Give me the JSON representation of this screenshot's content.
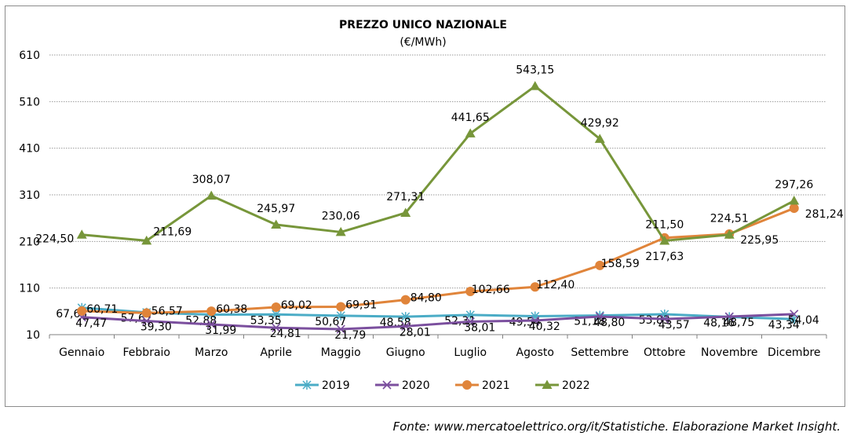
{
  "chart_data": {
    "type": "line",
    "title": "PREZZO UNICO NAZIONALE",
    "subtitle": "(€/MWh)",
    "xlabel": "",
    "ylabel": "",
    "ylim": [
      10,
      610
    ],
    "yticks": [
      10,
      110,
      210,
      310,
      410,
      510,
      610
    ],
    "grid": true,
    "legend_position": "bottom",
    "categories": [
      "Gennaio",
      "Febbraio",
      "Marzo",
      "Aprile",
      "Maggio",
      "Giugno",
      "Luglio",
      "Agosto",
      "Settembre",
      "Ottobre",
      "Novembre",
      "Dicembre"
    ],
    "series": [
      {
        "name": "2019",
        "color": "#4bacc6",
        "marker": "asterisk",
        "values": [
          67.65,
          57.67,
          52.88,
          53.35,
          50.67,
          48.58,
          52.31,
          49.54,
          51.18,
          53.83,
          48.16,
          43.34
        ],
        "labels": [
          "67,65",
          "57,67",
          "52,88",
          "53,35",
          "50,67",
          "48,58",
          "52,31",
          "49,54",
          "51,18",
          "53,83",
          "48,16",
          "43,34"
        ]
      },
      {
        "name": "2020",
        "color": "#7b4f9e",
        "marker": "x",
        "values": [
          47.47,
          39.3,
          31.99,
          24.81,
          21.79,
          28.01,
          38.01,
          40.32,
          48.8,
          43.57,
          48.75,
          54.04
        ],
        "labels": [
          "47,47",
          "39,30",
          "31,99",
          "24,81",
          "21,79",
          "28,01",
          "38,01",
          "40,32",
          "48,80",
          "43,57",
          "48,75",
          "54,04"
        ]
      },
      {
        "name": "2021",
        "color": "#e0843a",
        "marker": "circle",
        "values": [
          60.71,
          56.57,
          60.38,
          69.02,
          69.91,
          84.8,
          102.66,
          112.4,
          158.59,
          217.63,
          225.95,
          281.24
        ],
        "labels": [
          "60,71",
          "56,57",
          "60,38",
          "69,02",
          "69,91",
          "84,80",
          "102,66",
          "112,40",
          "158,59",
          "217,63",
          "225,95",
          "281,24"
        ]
      },
      {
        "name": "2022",
        "color": "#77963a",
        "marker": "triangle",
        "values": [
          224.5,
          211.69,
          308.07,
          245.97,
          230.06,
          271.31,
          441.65,
          543.15,
          429.92,
          211.5,
          224.51,
          297.26
        ],
        "labels": [
          "224,50",
          "211,69",
          "308,07",
          "245,97",
          "230,06",
          "271,31",
          "441,65",
          "543,15",
          "429,92",
          "211,50",
          "224,51",
          "297,26"
        ]
      }
    ]
  },
  "source_note": "Fonte: www.mercatoelettrico.org/it/Statistiche. Elaborazione Market Insight."
}
